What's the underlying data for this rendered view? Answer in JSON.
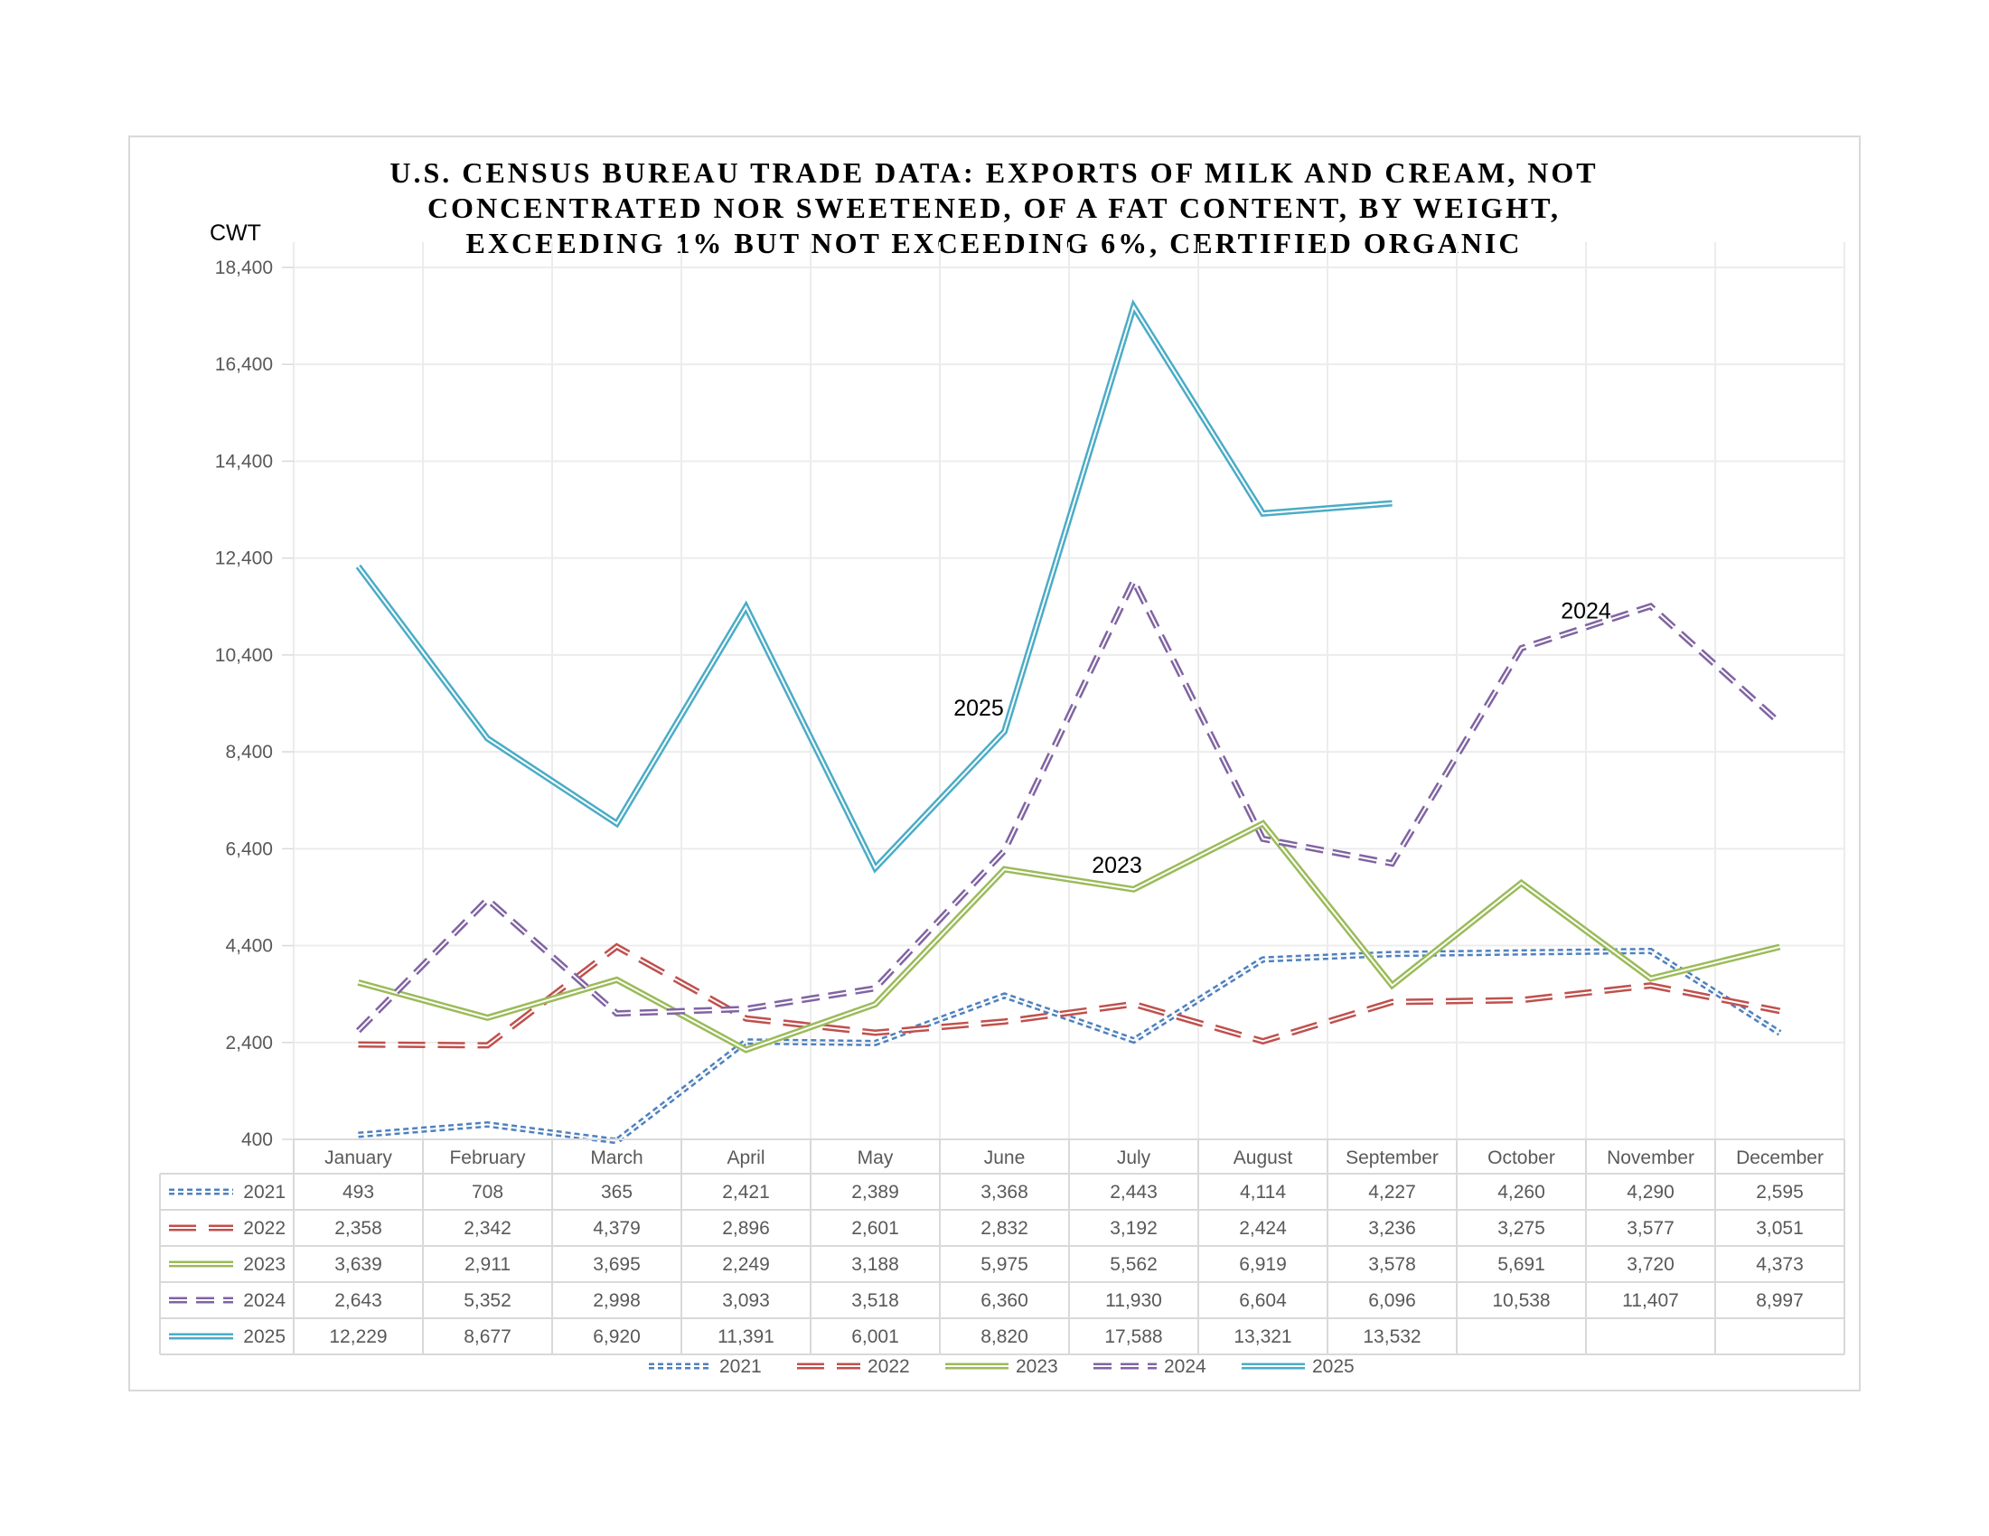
{
  "chart_data": {
    "type": "line",
    "title": "U.S. CENSUS BUREAU TRADE DATA: EXPORTS OF MILK AND CREAM, NOT CONCENTRATED NOR SWEETENED, OF A FAT CONTENT, BY WEIGHT, EXCEEDING 1% BUT NOT EXCEEDING 6%, CERTIFIED ORGANIC",
    "title_lines": [
      "U.S. CENSUS BUREAU TRADE DATA: EXPORTS OF MILK AND CREAM, NOT",
      "CONCENTRATED NOR SWEETENED, OF A FAT CONTENT, BY WEIGHT,",
      "EXCEEDING 1% BUT NOT EXCEEDING 6%, CERTIFIED ORGANIC"
    ],
    "ylabel": "CWT",
    "xlabel": "",
    "ylim": [
      400,
      18400
    ],
    "yticks": [
      400,
      2400,
      4400,
      6400,
      8400,
      10400,
      12400,
      14400,
      16400,
      18400
    ],
    "ytick_labels": [
      "400",
      "2,400",
      "4,400",
      "6,400",
      "8,400",
      "10,400",
      "12,400",
      "14,400",
      "16,400",
      "18,400"
    ],
    "grid": true,
    "legend": "bottom",
    "categories": [
      "January",
      "February",
      "March",
      "April",
      "May",
      "June",
      "July",
      "August",
      "September",
      "October",
      "November",
      "December"
    ],
    "series": [
      {
        "name": "2021",
        "color": "#4f81bd",
        "style": "dotted",
        "values": [
          493,
          708,
          365,
          2421,
          2389,
          3368,
          2443,
          4114,
          4227,
          4260,
          4290,
          2595
        ],
        "labels": [
          "493",
          "708",
          "365",
          "2,421",
          "2,389",
          "3,368",
          "2,443",
          "4,114",
          "4,227",
          "4,260",
          "4,290",
          "2,595"
        ]
      },
      {
        "name": "2022",
        "color": "#c0504d",
        "style": "dashed",
        "values": [
          2358,
          2342,
          4379,
          2896,
          2601,
          2832,
          3192,
          2424,
          3236,
          3275,
          3577,
          3051
        ],
        "labels": [
          "2,358",
          "2,342",
          "4,379",
          "2,896",
          "2,601",
          "2,832",
          "3,192",
          "2,424",
          "3,236",
          "3,275",
          "3,577",
          "3,051"
        ]
      },
      {
        "name": "2023",
        "color": "#9bbb59",
        "style": "solid",
        "values": [
          3639,
          2911,
          3695,
          2249,
          3188,
          5975,
          5562,
          6919,
          3578,
          5691,
          3720,
          4373
        ],
        "labels": [
          "3,639",
          "2,911",
          "3,695",
          "2,249",
          "3,188",
          "5,975",
          "5,562",
          "6,919",
          "3,578",
          "5,691",
          "3,720",
          "4,373"
        ]
      },
      {
        "name": "2024",
        "color": "#8064a2",
        "style": "longdash",
        "values": [
          2643,
          5352,
          2998,
          3093,
          3518,
          6360,
          11930,
          6604,
          6096,
          10538,
          11407,
          8997
        ],
        "labels": [
          "2,643",
          "5,352",
          "2,998",
          "3,093",
          "3,518",
          "6,360",
          "11,930",
          "6,604",
          "6,096",
          "10,538",
          "11,407",
          "8,997"
        ]
      },
      {
        "name": "2025",
        "color": "#4bacc6",
        "style": "solid",
        "values": [
          12229,
          8677,
          6920,
          11391,
          6001,
          8820,
          17588,
          13321,
          13532,
          null,
          null,
          null
        ],
        "labels": [
          "12,229",
          "8,677",
          "6,920",
          "11,391",
          "6,001",
          "8,820",
          "17,588",
          "13,321",
          "13,532",
          "",
          "",
          ""
        ]
      }
    ],
    "annotations": [
      {
        "text": "2025",
        "series": "2025",
        "near": "May-June"
      },
      {
        "text": "2024",
        "series": "2024",
        "near": "October-November"
      },
      {
        "text": "2023",
        "series": "2023",
        "near": "June-July"
      }
    ]
  }
}
